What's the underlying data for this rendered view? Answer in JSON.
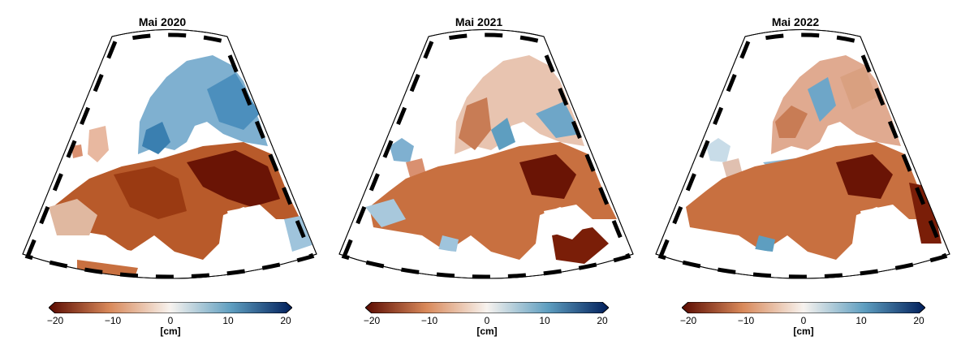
{
  "panels": [
    {
      "title": "Mai 2020"
    },
    {
      "title": "Mai 2021"
    },
    {
      "title": "Mai 2022"
    }
  ],
  "colorbar": {
    "ticks": [
      "−20",
      "−10",
      "0",
      "10",
      "20"
    ],
    "tick_values": [
      -20,
      -10,
      0,
      10,
      20
    ],
    "unit": "[cm]",
    "range": [
      -20,
      20
    ],
    "colors": {
      "low": "#5a0a00",
      "mid_low": "#d9895a",
      "zero": "#f7f3ef",
      "mid_high": "#5e9ec0",
      "high": "#001e5a"
    }
  }
}
